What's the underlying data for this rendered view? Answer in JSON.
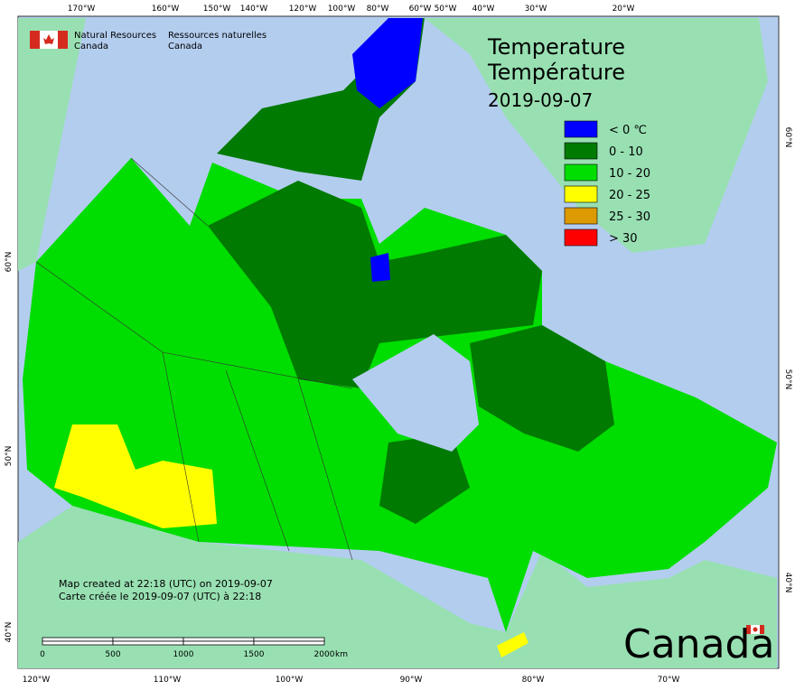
{
  "header": {
    "agency_en": [
      "Natural Resources",
      "Canada"
    ],
    "agency_fr": [
      "Ressources naturelles",
      "Canada"
    ]
  },
  "title": [
    "Temperature",
    "Température",
    "2019-09-07"
  ],
  "legend": [
    {
      "label": "< 0 ℃",
      "color": "#0000ff"
    },
    {
      "label": "0 - 10",
      "color": "#007a00"
    },
    {
      "label": "10 - 20",
      "color": "#00dd00"
    },
    {
      "label": "20 - 25",
      "color": "#ffff00"
    },
    {
      "label": "25 - 30",
      "color": "#dd9900"
    },
    {
      "label": "> 30",
      "color": "#ff0000"
    }
  ],
  "top_longitudes": [
    "170°W",
    "160°W",
    "150°W",
    "140°W",
    "120°W",
    "100°W",
    "80°W",
    "60°W",
    "50°W",
    "40°W",
    "30°W",
    "20°W"
  ],
  "bottom_longitudes": [
    "120°W",
    "110°W",
    "100°W",
    "90°W",
    "80°W",
    "70°W"
  ],
  "left_latitudes": [
    "60°N",
    "50°N",
    "40°N"
  ],
  "right_latitudes": [
    "60°N",
    "50°N",
    "40°N"
  ],
  "credits": [
    "Map created at 22:18 (UTC) on 2019-09-07",
    "Carte créée le 2019-09-07 (UTC) à 22:18"
  ],
  "scale_bar": {
    "ticks": [
      0,
      500,
      1000,
      1500,
      2000
    ],
    "unit": "km"
  },
  "wordmark": "Canada"
}
